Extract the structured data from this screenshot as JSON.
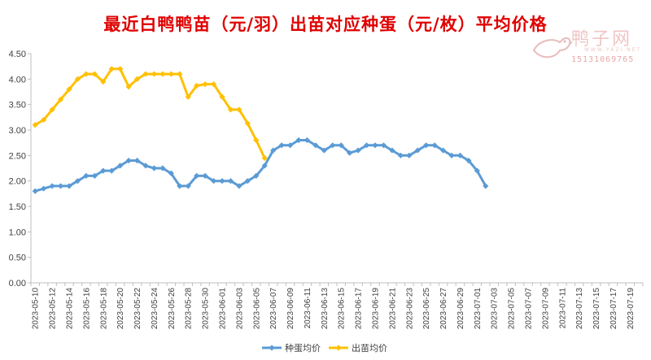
{
  "title": "最近白鸭鸭苗（元/羽）出苗对应种蛋（元/枚）平均价格",
  "watermark": {
    "name": "鸭子网",
    "url": "WWW.YAZI.NET",
    "phone": "15131069765"
  },
  "chart_data": {
    "type": "line",
    "title": "最近白鸭鸭苗（元/羽）出苗对应种蛋（元/枚）平均价格",
    "xlabel": "",
    "ylabel": "",
    "ylim": [
      0,
      4.5
    ],
    "yticks": [
      0,
      0.5,
      1.0,
      1.5,
      2.0,
      2.5,
      3.0,
      3.5,
      4.0,
      4.5
    ],
    "ytick_labels": [
      "0.00",
      "0.50",
      "1.00",
      "1.50",
      "2.00",
      "2.50",
      "3.00",
      "3.50",
      "4.00",
      "4.50"
    ],
    "grid": false,
    "legend_position": "bottom",
    "categories": [
      "2023-05-10",
      "2023-05-11",
      "2023-05-12",
      "2023-05-13",
      "2023-05-14",
      "2023-05-15",
      "2023-05-16",
      "2023-05-17",
      "2023-05-18",
      "2023-05-19",
      "2023-05-20",
      "2023-05-21",
      "2023-05-22",
      "2023-05-23",
      "2023-05-24",
      "2023-05-25",
      "2023-05-26",
      "2023-05-27",
      "2023-05-28",
      "2023-05-29",
      "2023-05-30",
      "2023-05-31",
      "2023-06-01",
      "2023-06-02",
      "2023-06-03",
      "2023-06-04",
      "2023-06-05",
      "2023-06-06",
      "2023-06-07",
      "2023-06-08",
      "2023-06-09",
      "2023-06-10",
      "2023-06-11",
      "2023-06-12",
      "2023-06-13",
      "2023-06-14",
      "2023-06-15",
      "2023-06-16",
      "2023-06-17",
      "2023-06-18",
      "2023-06-19",
      "2023-06-20",
      "2023-06-21",
      "2023-06-22",
      "2023-06-23",
      "2023-06-24",
      "2023-06-25",
      "2023-06-26",
      "2023-06-27",
      "2023-06-28",
      "2023-06-29",
      "2023-06-30",
      "2023-07-01",
      "2023-07-02",
      "2023-07-03",
      "2023-07-04",
      "2023-07-05",
      "2023-07-06",
      "2023-07-07",
      "2023-07-08",
      "2023-07-09",
      "2023-07-10",
      "2023-07-11",
      "2023-07-12",
      "2023-07-13",
      "2023-07-14",
      "2023-07-15",
      "2023-07-16",
      "2023-07-17",
      "2023-07-18",
      "2023-07-19",
      "2023-07-20"
    ],
    "series": [
      {
        "name": "种蛋均价",
        "color": "#5b9bd5",
        "marker": "diamond",
        "values": [
          1.8,
          1.85,
          1.9,
          1.9,
          1.9,
          2.0,
          2.1,
          2.1,
          2.2,
          2.2,
          2.3,
          2.4,
          2.4,
          2.3,
          2.25,
          2.25,
          2.15,
          1.9,
          1.9,
          2.1,
          2.1,
          2.0,
          2.0,
          2.0,
          1.9,
          2.0,
          2.1,
          2.3,
          2.6,
          2.7,
          2.7,
          2.8,
          2.8,
          2.7,
          2.6,
          2.7,
          2.7,
          2.55,
          2.6,
          2.7,
          2.7,
          2.7,
          2.6,
          2.5,
          2.5,
          2.6,
          2.7,
          2.7,
          2.6,
          2.5,
          2.5,
          2.4,
          2.2,
          1.9,
          null,
          null,
          null,
          null,
          null,
          null,
          null,
          null,
          null,
          null,
          null,
          null,
          null,
          null,
          null,
          null,
          null,
          null
        ]
      },
      {
        "name": "出苗均价",
        "color": "#ffc000",
        "marker": "diamond",
        "values": [
          3.1,
          3.2,
          3.4,
          3.6,
          3.8,
          4.0,
          4.1,
          4.1,
          3.95,
          4.2,
          4.2,
          3.85,
          4.0,
          4.1,
          4.1,
          4.1,
          4.1,
          4.1,
          3.65,
          3.87,
          3.9,
          3.9,
          3.65,
          3.4,
          3.4,
          3.13,
          2.8,
          2.45,
          null,
          null,
          null,
          null,
          null,
          null,
          null,
          null,
          null,
          null,
          null,
          null,
          null,
          null,
          null,
          null,
          null,
          null,
          null,
          null,
          null,
          null,
          null,
          null,
          null,
          null,
          null,
          null,
          null,
          null,
          null,
          null,
          null,
          null,
          null,
          null,
          null,
          null,
          null,
          null,
          null,
          null,
          null,
          null
        ]
      }
    ]
  }
}
